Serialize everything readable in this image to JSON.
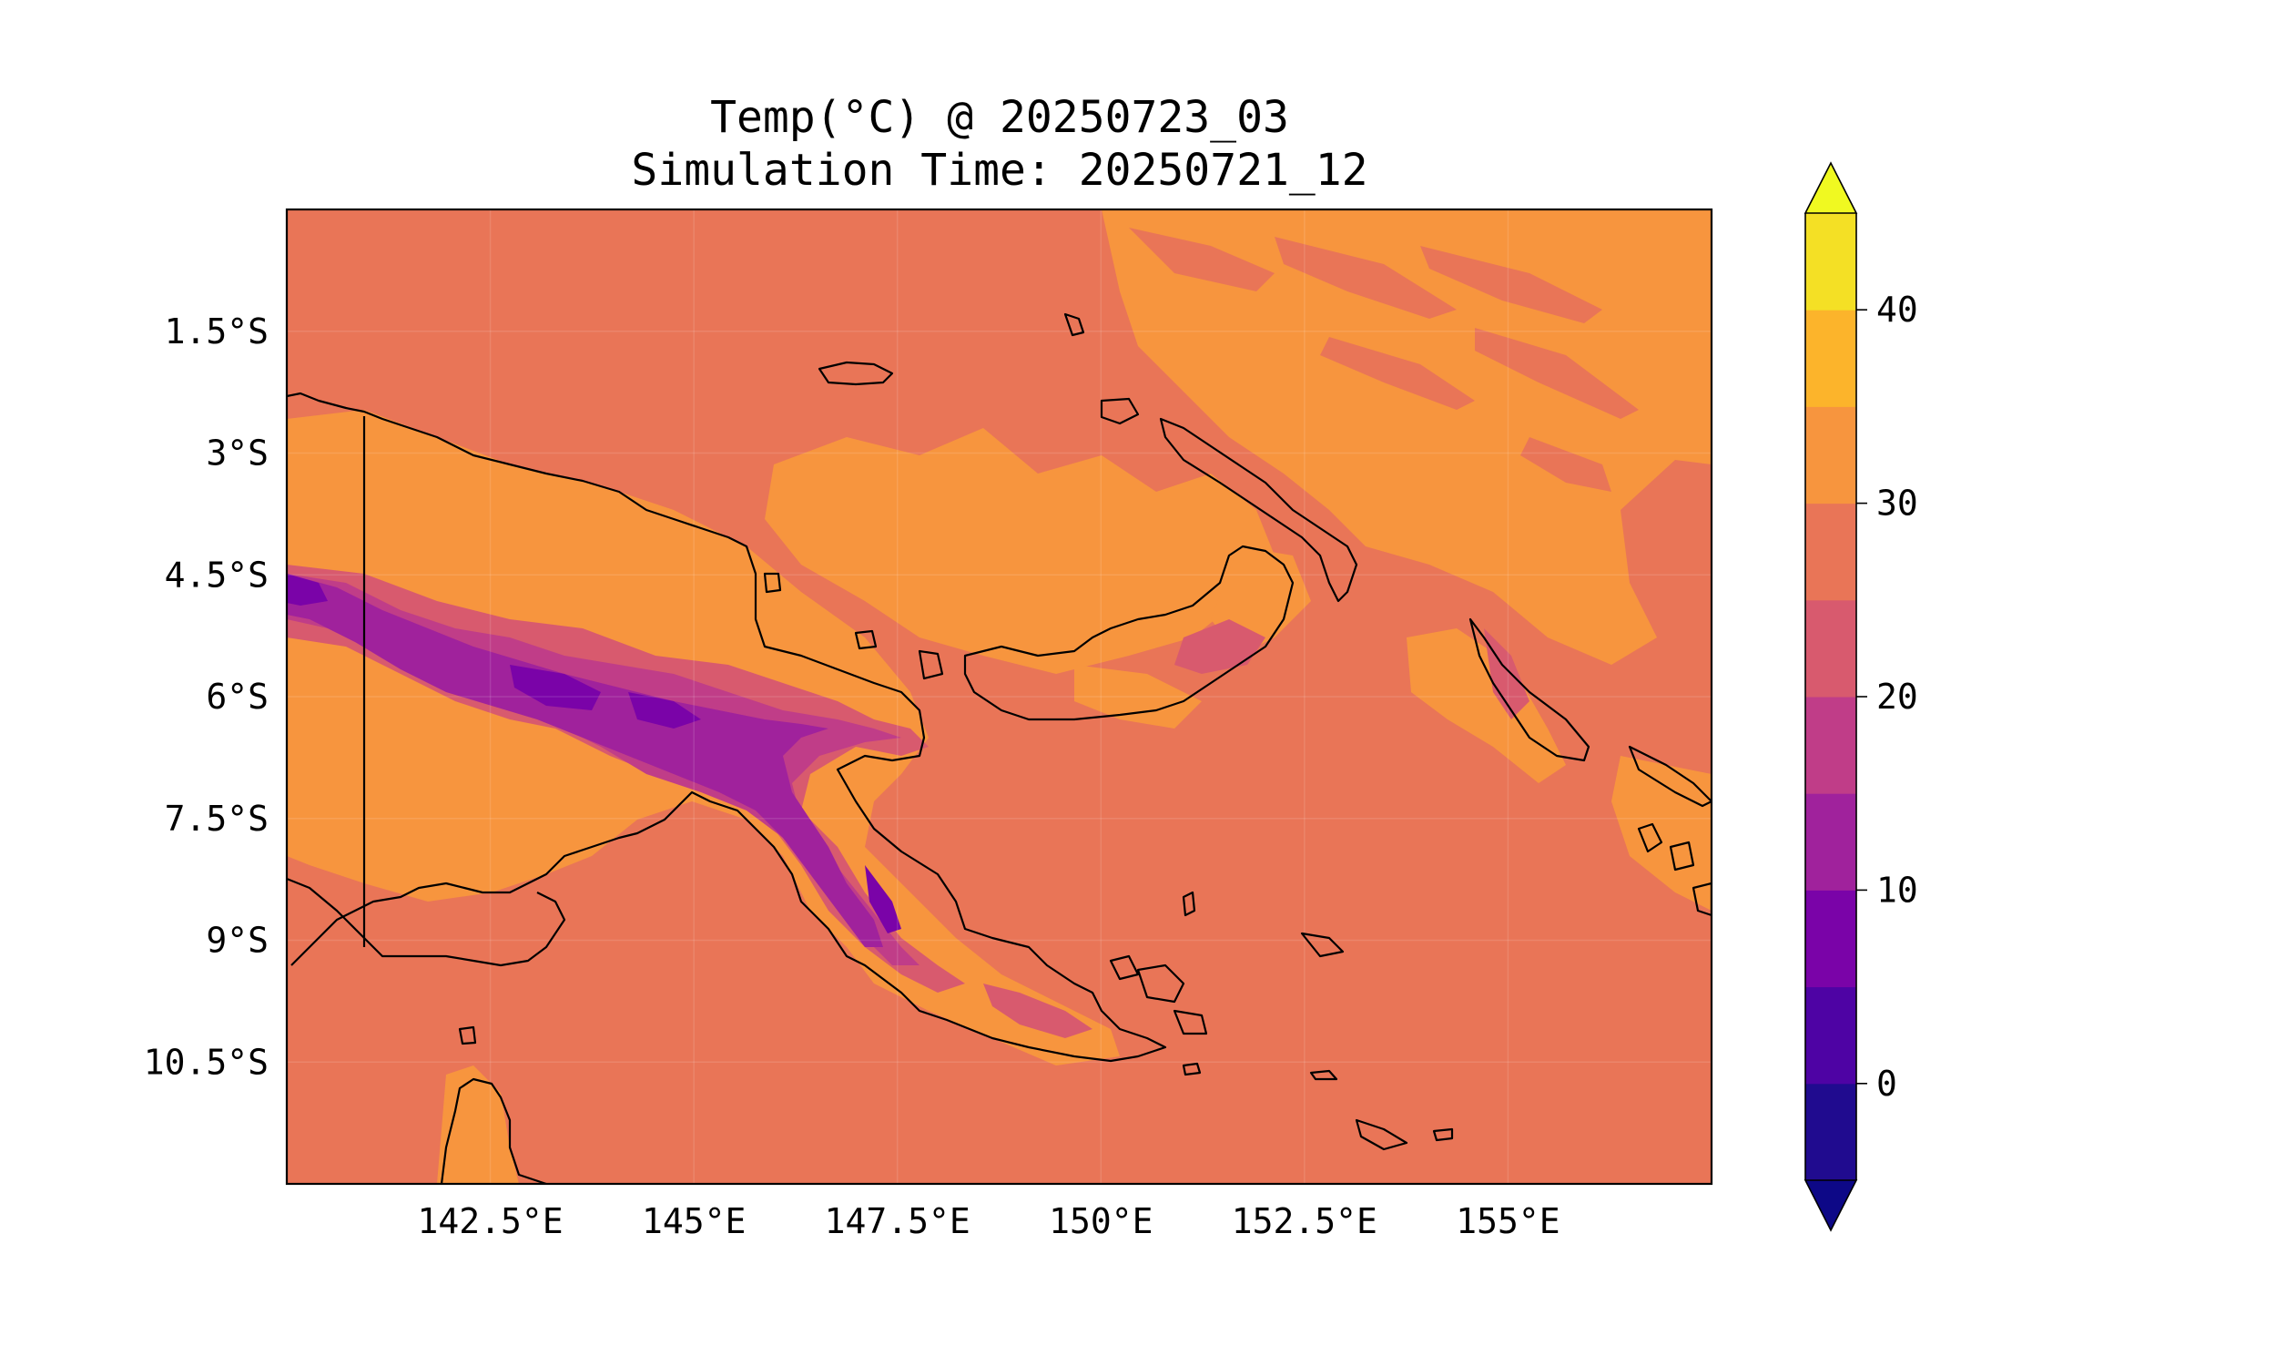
{
  "title": {
    "line1": "Temp(°C) @ 20250723_03",
    "line2": "Simulation Time: 20250721_12"
  },
  "map": {
    "lon_range": [
      140.0,
      157.5
    ],
    "lat_range": [
      -12.0,
      0.0
    ],
    "x_ticks": [
      {
        "lon": 142.5,
        "label": "142.5°E"
      },
      {
        "lon": 145.0,
        "label": "145°E"
      },
      {
        "lon": 147.5,
        "label": "147.5°E"
      },
      {
        "lon": 150.0,
        "label": "150°E"
      },
      {
        "lon": 152.5,
        "label": "152.5°E"
      },
      {
        "lon": 155.0,
        "label": "155°E"
      }
    ],
    "y_ticks": [
      {
        "lat": -1.5,
        "label": "1.5°S"
      },
      {
        "lat": -3.0,
        "label": "3°S"
      },
      {
        "lat": -4.5,
        "label": "4.5°S"
      },
      {
        "lat": -6.0,
        "label": "6°S"
      },
      {
        "lat": -7.5,
        "label": "7.5°S"
      },
      {
        "lat": -9.0,
        "label": "9°S"
      },
      {
        "lat": -10.5,
        "label": "10.5°S"
      }
    ],
    "gridlines": true
  },
  "colorbar": {
    "variable": "Temp(°C)",
    "extend": "both",
    "levels": [
      -5,
      0,
      5,
      10,
      15,
      20,
      25,
      30,
      35,
      40,
      45
    ],
    "tick_values": [
      0,
      10,
      20,
      30,
      40
    ],
    "tick_labels": [
      "0",
      "10",
      "20",
      "30",
      "40"
    ],
    "colors": [
      "#200b8f",
      "#4e03a4",
      "#7a03a8",
      "#a0229c",
      "#c03d88",
      "#d85a6e",
      "#e97557",
      "#f7953e",
      "#fcb42b",
      "#f4e025"
    ],
    "under_color": "#0d0887",
    "over_color": "#f0f921"
  },
  "colors": {
    "sea_base": "#e97557",
    "warm": "#f7953e",
    "cool_1": "#d85a6e",
    "cool_2": "#c03d88",
    "cool_3": "#a0229c",
    "coastline": "#000000"
  }
}
